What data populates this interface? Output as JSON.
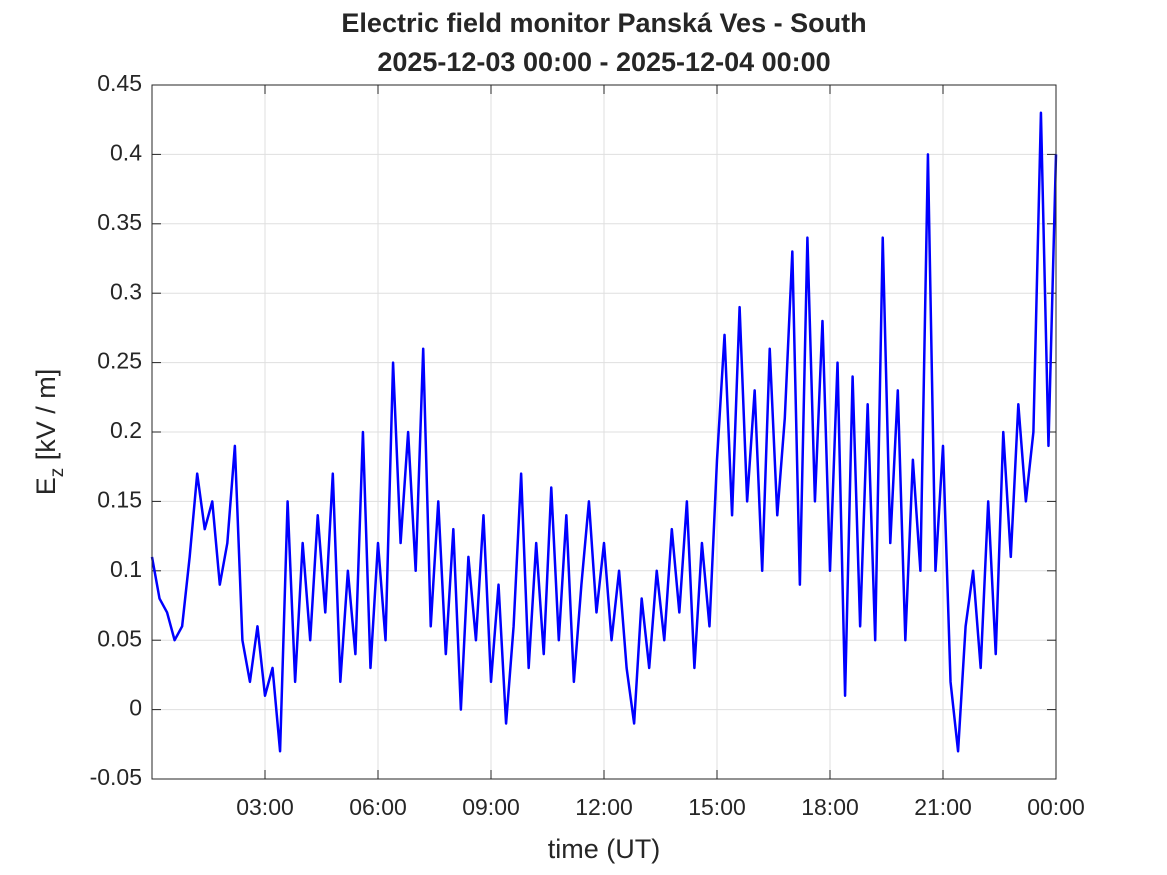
{
  "chart_data": {
    "type": "line",
    "title": "Electric field monitor Panská Ves - South",
    "subtitle": "2025-12-03 00:00 - 2025-12-04 00:00",
    "xlabel": "time (UT)",
    "ylabel": {
      "main": "E",
      "sub": "z",
      "rest": " [kV / m]"
    },
    "xlim": [
      0,
      24
    ],
    "xticks": [
      {
        "value": 3,
        "label": "03:00"
      },
      {
        "value": 6,
        "label": "06:00"
      },
      {
        "value": 9,
        "label": "09:00"
      },
      {
        "value": 12,
        "label": "12:00"
      },
      {
        "value": 15,
        "label": "15:00"
      },
      {
        "value": 18,
        "label": "18:00"
      },
      {
        "value": 21,
        "label": "21:00"
      },
      {
        "value": 24,
        "label": "00:00"
      }
    ],
    "ylim": [
      -0.05,
      0.45
    ],
    "yticks": [
      -0.05,
      0,
      0.05,
      0.1,
      0.15,
      0.2,
      0.25,
      0.3,
      0.35,
      0.4,
      0.45
    ],
    "grid": true,
    "series": [
      {
        "color": "#0000ff",
        "x": [
          0,
          0.2,
          0.4,
          0.6,
          0.8,
          1,
          1.2,
          1.4,
          1.6,
          1.8,
          2,
          2.2,
          2.4,
          2.6,
          2.8,
          3,
          3.2,
          3.4,
          3.6,
          3.8,
          4,
          4.2,
          4.4,
          4.6,
          4.8,
          5,
          5.2,
          5.4,
          5.6,
          5.8,
          6,
          6.2,
          6.4,
          6.6,
          6.8,
          7,
          7.2,
          7.4,
          7.6,
          7.8,
          8,
          8.2,
          8.4,
          8.6,
          8.8,
          9,
          9.2,
          9.4,
          9.6,
          9.8,
          10,
          10.2,
          10.4,
          10.6,
          10.8,
          11,
          11.2,
          11.4,
          11.6,
          11.8,
          12,
          12.2,
          12.4,
          12.6,
          12.8,
          13,
          13.2,
          13.4,
          13.6,
          13.8,
          14,
          14.2,
          14.4,
          14.6,
          14.8,
          15,
          15.2,
          15.4,
          15.6,
          15.8,
          16,
          16.2,
          16.4,
          16.6,
          16.8,
          17,
          17.2,
          17.4,
          17.6,
          17.8,
          18,
          18.2,
          18.4,
          18.6,
          18.8,
          19,
          19.2,
          19.4,
          19.6,
          19.8,
          20,
          20.2,
          20.4,
          20.6,
          20.8,
          21,
          21.2,
          21.4,
          21.6,
          21.8,
          22,
          22.2,
          22.4,
          22.6,
          22.8,
          23,
          23.2,
          23.4,
          23.6,
          23.8,
          24
        ],
        "values": [
          0.11,
          0.08,
          0.07,
          0.05,
          0.06,
          0.11,
          0.17,
          0.13,
          0.15,
          0.09,
          0.12,
          0.19,
          0.05,
          0.02,
          0.06,
          0.01,
          0.03,
          -0.03,
          0.15,
          0.02,
          0.12,
          0.05,
          0.14,
          0.07,
          0.17,
          0.02,
          0.1,
          0.04,
          0.2,
          0.03,
          0.12,
          0.05,
          0.25,
          0.12,
          0.2,
          0.1,
          0.26,
          0.06,
          0.15,
          0.04,
          0.13,
          0,
          0.11,
          0.05,
          0.14,
          0.02,
          0.09,
          -0.01,
          0.06,
          0.17,
          0.03,
          0.12,
          0.04,
          0.16,
          0.05,
          0.14,
          0.02,
          0.09,
          0.15,
          0.07,
          0.12,
          0.05,
          0.1,
          0.03,
          -0.01,
          0.08,
          0.03,
          0.1,
          0.05,
          0.13,
          0.07,
          0.15,
          0.03,
          0.12,
          0.06,
          0.18,
          0.27,
          0.14,
          0.29,
          0.15,
          0.23,
          0.1,
          0.26,
          0.14,
          0.21,
          0.33,
          0.09,
          0.34,
          0.15,
          0.28,
          0.1,
          0.25,
          0.01,
          0.24,
          0.06,
          0.22,
          0.05,
          0.34,
          0.12,
          0.23,
          0.05,
          0.18,
          0.1,
          0.4,
          0.1,
          0.19,
          0.02,
          -0.03,
          0.06,
          0.1,
          0.03,
          0.15,
          0.04,
          0.2,
          0.11,
          0.22,
          0.15,
          0.2,
          0.43,
          0.19,
          0.4
        ]
      }
    ]
  }
}
